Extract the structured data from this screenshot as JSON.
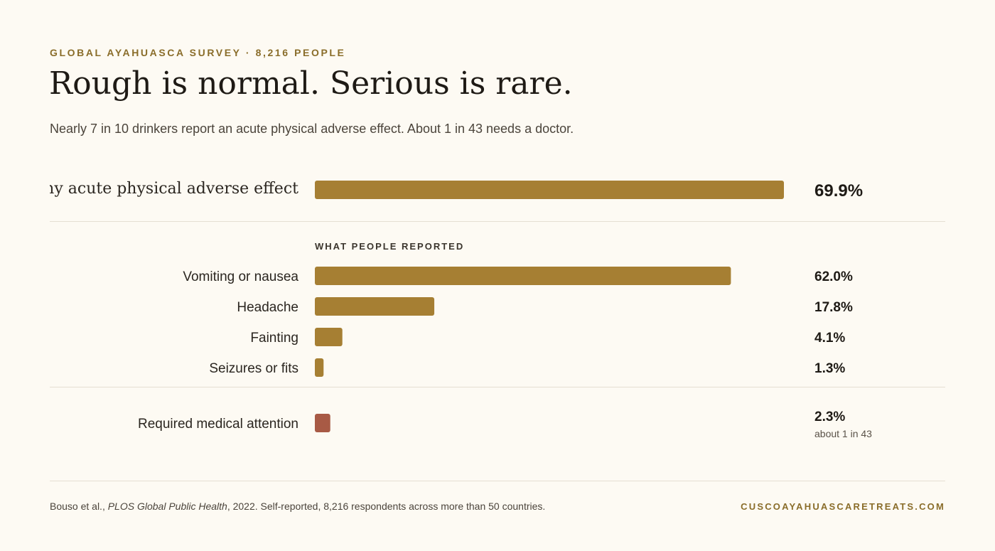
{
  "header": {
    "eyebrow": "GLOBAL AYAHUASCA SURVEY · 8,216 PEOPLE",
    "title": "Rough is normal. Serious is rare.",
    "subtitle": "Nearly 7 in 10 drinkers report an acute physical adverse effect. About 1 in 43 needs a doctor."
  },
  "colors": {
    "bar": "#a67f33",
    "bar_alert": "#a85a45",
    "background": "#fdfaf3"
  },
  "chart_data": {
    "type": "bar",
    "orientation": "horizontal",
    "unit": "%",
    "xlim": [
      0,
      100
    ],
    "groups": [
      {
        "heading": "",
        "items": [
          {
            "label": "Any acute physical adverse effect",
            "value": 69.9,
            "display": "69.9%",
            "note": "",
            "style": "headline",
            "color": "bar"
          }
        ]
      },
      {
        "heading": "WHAT PEOPLE REPORTED",
        "items": [
          {
            "label": "Vomiting or nausea",
            "value": 62.0,
            "display": "62.0%",
            "note": "",
            "style": "normal",
            "color": "bar"
          },
          {
            "label": "Headache",
            "value": 17.8,
            "display": "17.8%",
            "note": "",
            "style": "normal",
            "color": "bar"
          },
          {
            "label": "Fainting",
            "value": 4.1,
            "display": "4.1%",
            "note": "",
            "style": "normal",
            "color": "bar"
          },
          {
            "label": "Seizures or fits",
            "value": 1.3,
            "display": "1.3%",
            "note": "",
            "style": "normal",
            "color": "bar"
          }
        ]
      },
      {
        "heading": "",
        "items": [
          {
            "label": "Required medical attention",
            "value": 2.3,
            "display": "2.3%",
            "note": "about 1 in 43",
            "style": "normal",
            "color": "bar_alert"
          }
        ]
      }
    ]
  },
  "footer": {
    "source_authors": "Bouso et al., ",
    "source_journal": "PLOS Global Public Health",
    "source_rest": ", 2022. Self-reported, 8,216 respondents across more than 50 countries.",
    "site": "CUSCOAYAHUASCARETREATS.COM"
  }
}
